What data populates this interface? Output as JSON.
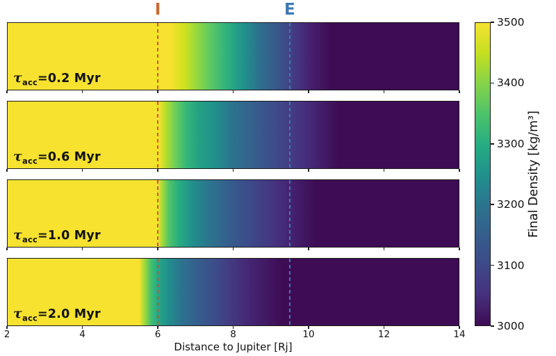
{
  "figure": {
    "background": "#ffffff",
    "frame_color": "#1a1a1a"
  },
  "chart_data": {
    "type": "heatmap",
    "title": "",
    "x_axis": {
      "label": "Distance to Jupiter [Rj]",
      "range": [
        2,
        14
      ],
      "ticks": [
        2,
        4,
        6,
        8,
        10,
        12,
        14
      ]
    },
    "top_markers": [
      {
        "label": "I",
        "x": 6.0,
        "color": "#c9682d"
      },
      {
        "label": "E",
        "x": 9.5,
        "color": "#3a79b7"
      }
    ],
    "vlines": [
      {
        "name": "I-line",
        "x": 6.0,
        "color": "#d2551f",
        "style": "dashed"
      },
      {
        "name": "E-line",
        "x": 9.5,
        "color": "#4b74ae",
        "style": "dashed"
      }
    ],
    "panels": [
      {
        "label": {
          "tau": "τ",
          "subscript": "acc",
          "rest": "=0.2 Myr"
        },
        "tau_acc_myr": 0.2,
        "gradient_stops": [
          [
            2.0,
            "#f6e22f"
          ],
          [
            6.35,
            "#f6e22f"
          ],
          [
            6.7,
            "#cfe11e"
          ],
          [
            7.0,
            "#9bd93c"
          ],
          [
            7.35,
            "#63cb5f"
          ],
          [
            7.7,
            "#3bb877"
          ],
          [
            8.0,
            "#26a585"
          ],
          [
            8.3,
            "#21918c"
          ],
          [
            8.65,
            "#2b748e"
          ],
          [
            9.0,
            "#34618d"
          ],
          [
            9.35,
            "#3d4e8a"
          ],
          [
            9.7,
            "#453581"
          ],
          [
            10.1,
            "#461f6d"
          ],
          [
            10.6,
            "#3e0c55"
          ],
          [
            14.0,
            "#3e0c55"
          ]
        ]
      },
      {
        "label": {
          "tau": "τ",
          "subscript": "acc",
          "rest": "=0.6 Myr"
        },
        "tau_acc_myr": 0.6,
        "gradient_stops": [
          [
            2.0,
            "#f6e22f"
          ],
          [
            6.02,
            "#f6e22f"
          ],
          [
            6.2,
            "#b8de2a"
          ],
          [
            6.45,
            "#6ece58"
          ],
          [
            6.75,
            "#35b779"
          ],
          [
            7.1,
            "#23a083"
          ],
          [
            7.5,
            "#21918c"
          ],
          [
            8.0,
            "#2c728e"
          ],
          [
            8.6,
            "#365d8d"
          ],
          [
            9.2,
            "#3f4889"
          ],
          [
            9.9,
            "#462f7e"
          ],
          [
            10.8,
            "#3e0c55"
          ],
          [
            14.0,
            "#3e0c55"
          ]
        ]
      },
      {
        "label": {
          "tau": "τ",
          "subscript": "acc",
          "rest": "=1.0 Myr"
        },
        "tau_acc_myr": 1.0,
        "gradient_stops": [
          [
            2.0,
            "#f6e22f"
          ],
          [
            5.98,
            "#f6e22f"
          ],
          [
            6.12,
            "#a0da39"
          ],
          [
            6.3,
            "#4ec36a"
          ],
          [
            6.55,
            "#28ae80"
          ],
          [
            6.9,
            "#21918c"
          ],
          [
            7.35,
            "#2b758e"
          ],
          [
            7.9,
            "#355e8d"
          ],
          [
            8.5,
            "#3e4889"
          ],
          [
            9.2,
            "#46307e"
          ],
          [
            10.2,
            "#3e0c55"
          ],
          [
            14.0,
            "#3e0c55"
          ]
        ]
      },
      {
        "label": {
          "tau": "τ",
          "subscript": "acc",
          "rest": "=2.0 Myr"
        },
        "tau_acc_myr": 2.0,
        "gradient_stops": [
          [
            2.0,
            "#f6e22f"
          ],
          [
            5.5,
            "#f6e22f"
          ],
          [
            5.65,
            "#9bd93c"
          ],
          [
            5.82,
            "#44bf70"
          ],
          [
            6.0,
            "#23a983"
          ],
          [
            6.25,
            "#21918c"
          ],
          [
            6.6,
            "#2b748e"
          ],
          [
            7.05,
            "#355e8d"
          ],
          [
            7.6,
            "#3e4989"
          ],
          [
            8.3,
            "#462a78"
          ],
          [
            9.3,
            "#3e0c55"
          ],
          [
            14.0,
            "#3e0c55"
          ]
        ]
      }
    ],
    "colorbar": {
      "label": "Final Density [kg/m³]",
      "range": [
        3000,
        3500
      ],
      "ticks": [
        3500,
        3400,
        3300,
        3200,
        3100,
        3000
      ],
      "colormap": "viridis",
      "stops_top_to_bottom": [
        "#f6e22f",
        "#c5e021",
        "#86d349",
        "#4ec36a",
        "#27ad81",
        "#21918c",
        "#2b758e",
        "#355e8d",
        "#3e4989",
        "#46307e",
        "#3e0c55"
      ]
    }
  }
}
